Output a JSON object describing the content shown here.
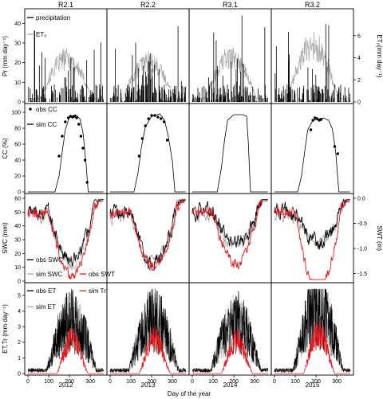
{
  "chart_data": {
    "type": "multi-panel time series",
    "columns": [
      "R2.1",
      "R2.2",
      "R3.1",
      "R3.2"
    ],
    "years": [
      "2012",
      "2013",
      "2014",
      "2015"
    ],
    "xlabel": "Day of the year",
    "xticks": [
      0,
      100,
      200,
      300
    ],
    "xlim": [
      0,
      365
    ],
    "rows": [
      {
        "id": "precip",
        "ylabel_left": "Pr (mm day⁻¹)",
        "ylabel_right": "ET₀(mm day⁻¹)",
        "ylim_left": [
          0,
          45
        ],
        "yticks_left": [
          0,
          10,
          20,
          30,
          40
        ],
        "ylim_right": [
          0,
          8
        ],
        "yticks_right": [
          0,
          2,
          4,
          6
        ],
        "legend": [
          "precipitation",
          "ET₀"
        ],
        "series": [
          {
            "name": "precipitation",
            "color": "#000000",
            "style": "bars"
          },
          {
            "name": "ET₀",
            "color": "#a9a9a9",
            "style": "line"
          }
        ],
        "et0_seasonal_peak_by_column": [
          4.6,
          4.3,
          4.8,
          6.2
        ]
      },
      {
        "id": "cc",
        "ylabel_left": "CC (%)",
        "ylim_left": [
          0,
          105
        ],
        "yticks_left": [
          0,
          20,
          40,
          60,
          80,
          100
        ],
        "legend": [
          "obs CC",
          "sim CC"
        ],
        "sim_cc": [
          {
            "column": "R2.1",
            "doy": [
              0,
              130,
              150,
              165,
              180,
              200,
              230,
              250,
              265,
              280,
              290,
              365
            ],
            "values": [
              0,
              0,
              20,
              50,
              78,
              94,
              97,
              92,
              75,
              35,
              0,
              0
            ]
          },
          {
            "column": "R2.2",
            "doy": [
              0,
              115,
              135,
              150,
              170,
              200,
              240,
              262,
              280,
              300,
              312,
              365
            ],
            "values": [
              0,
              0,
              25,
              55,
              82,
              95,
              98,
              90,
              70,
              38,
              0,
              0
            ]
          },
          {
            "column": "R3.1",
            "doy": [
              0,
              120,
              140,
              155,
              170,
              200,
              245,
              262,
              270,
              280,
              365
            ],
            "values": [
              0,
              0,
              30,
              65,
              90,
              97,
              97,
              95,
              60,
              0,
              0
            ]
          },
          {
            "column": "R3.2",
            "doy": [
              0,
              112,
              130,
              145,
              160,
              185,
              235,
              260,
              278,
              295,
              310,
              365
            ],
            "values": [
              0,
              0,
              20,
              50,
              78,
              90,
              93,
              90,
              80,
              50,
              0,
              0
            ]
          }
        ],
        "obs_cc": [
          {
            "column": "R2.1",
            "doy": [
              150,
              165,
              180,
              195,
              205,
              215,
              225,
              235,
              245,
              255,
              265,
              275,
              285
            ],
            "values": [
              45,
              70,
              88,
              93,
              95,
              94,
              95,
              93,
              85,
              70,
              55,
              40,
              12
            ]
          },
          {
            "column": "R2.2",
            "doy": [
              140,
              155,
              170,
              185,
              200,
              215,
              230,
              245,
              260,
              275
            ],
            "values": [
              45,
              67,
              83,
              92,
              96,
              96,
              94,
              92,
              88,
              65
            ]
          },
          {
            "column": "R3.1",
            "doy": [],
            "values": []
          },
          {
            "column": "R3.2",
            "doy": [
              175,
              185,
              195,
              205,
              215,
              225,
              290,
              305
            ],
            "values": [
              78,
              90,
              93,
              92,
              90,
              91,
              57,
              48
            ]
          }
        ]
      },
      {
        "id": "swc",
        "ylabel_left": "SWC (mm)",
        "ylabel_right": "SWT (m)",
        "ylim_left": [
          0,
          60
        ],
        "yticks_left": [
          0,
          10,
          20,
          30,
          40,
          50,
          60
        ],
        "ylim_right": [
          -1.65,
          0
        ],
        "yticks_right": [
          -1.5,
          -1.0,
          -0.5,
          0.0
        ],
        "yticklabels_right": [
          "-1.5",
          "-1.0",
          "-0.5",
          "0.0"
        ],
        "legend": [
          "obs SWC",
          "sim SWC",
          "obs SWT"
        ],
        "series": [
          {
            "name": "obs SWC",
            "color": "#000000"
          },
          {
            "name": "sim SWC",
            "color": "#a9a9a9"
          },
          {
            "name": "obs SWT",
            "color": "#e8191e"
          }
        ]
      },
      {
        "id": "et",
        "ylabel_left": "ET,Tr (mm day⁻¹)",
        "ylim_left": [
          0,
          5.5
        ],
        "yticks_left": [
          0,
          1,
          2,
          3,
          4,
          5
        ],
        "legend": [
          "obs ET",
          "sim Tr",
          "sim ET"
        ],
        "series": [
          {
            "name": "obs ET",
            "color": "#000000"
          },
          {
            "name": "sim Tr",
            "color": "#e8191e"
          },
          {
            "name": "sim ET",
            "color": "#a9a9a9"
          }
        ],
        "seasonal_peak_by_column": [
          4.5,
          4.6,
          4.4,
          5.6
        ]
      }
    ]
  }
}
